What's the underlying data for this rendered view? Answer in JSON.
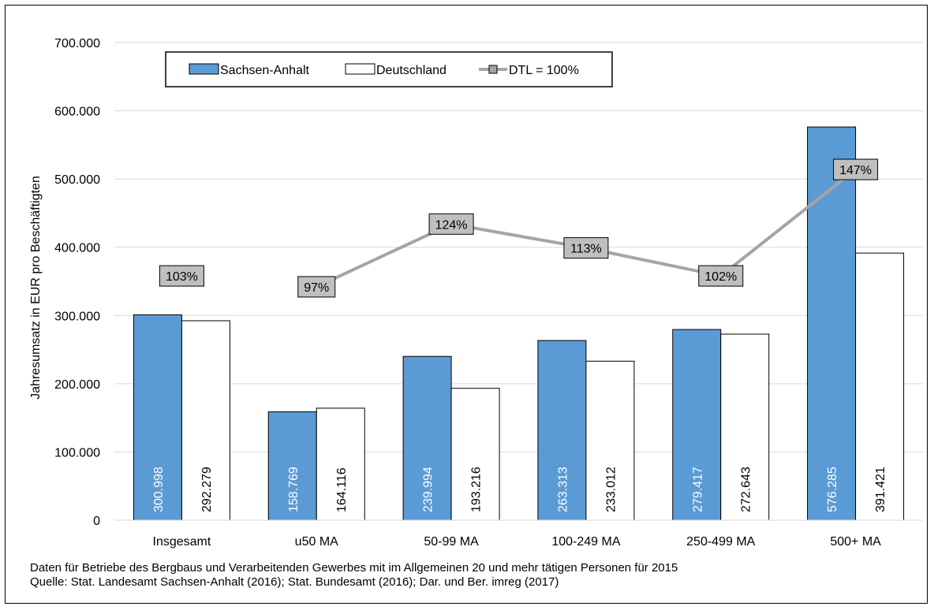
{
  "chart_data": {
    "type": "bar",
    "categories": [
      "Insgesamt",
      "u50 MA",
      "50-99 MA",
      "100-249 MA",
      "250-499 MA",
      "500+ MA"
    ],
    "series": [
      {
        "name": "Sachsen-Anhalt",
        "values": [
          300998,
          158769,
          239994,
          263313,
          279417,
          576285
        ],
        "labels": [
          "300.998",
          "158.769",
          "239.994",
          "263.313",
          "279.417",
          "576.285"
        ],
        "color": "#5B9BD5"
      },
      {
        "name": "Deutschland",
        "values": [
          292279,
          164116,
          193216,
          233012,
          272643,
          391421
        ],
        "labels": [
          "292.279",
          "164.116",
          "193.216",
          "233.012",
          "272.643",
          "391.421"
        ],
        "color": "#FFFFFF"
      }
    ],
    "ratio_series": {
      "name": "DTL = 100%",
      "values_percent": [
        103,
        97,
        124,
        113,
        102,
        147
      ],
      "labels": [
        "103%",
        "97%",
        "124%",
        "113%",
        "102%",
        "147%"
      ],
      "label_positions_y": [
        358000,
        342000,
        434000,
        399000,
        358000,
        514000
      ],
      "color": "#A5A5A5",
      "line_connects_from_index": 1
    },
    "ylabel": "Jahresumsatz in EUR pro Beschäftigten",
    "ylim": [
      0,
      700000
    ],
    "yticks": [
      0,
      100000,
      200000,
      300000,
      400000,
      500000,
      600000,
      700000
    ],
    "ytick_labels": [
      "0",
      "100.000",
      "200.000",
      "300.000",
      "400.000",
      "500.000",
      "600.000",
      "700.000"
    ],
    "grid": true,
    "legend_position": "top-left"
  },
  "footnote": {
    "line1": "Daten für Betriebe des Bergbaus und Verarbeitenden Gewerbes mit im Allgemeinen 20 und mehr tätigen Personen für 2015",
    "line2": "Quelle: Stat. Landesamt Sachsen-Anhalt  (2016); Stat. Bundesamt (2016); Dar. und Ber. imreg (2017)"
  }
}
